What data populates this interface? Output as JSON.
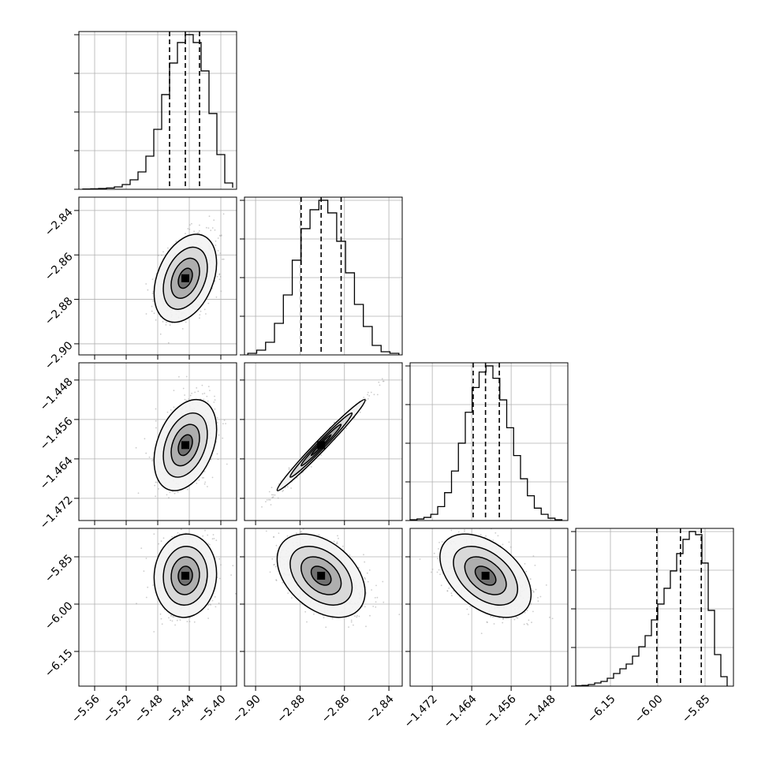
{
  "chart_data": {
    "type": "corner",
    "description_free": true,
    "grid": true,
    "params": [
      {
        "range": [
          -5.58,
          -5.38
        ],
        "ticks": [
          -5.56,
          -5.52,
          -5.48,
          -5.44,
          -5.4
        ],
        "tick_labels": [
          "−5.56",
          "−5.52",
          "−5.48",
          "−5.44",
          "−5.40"
        ],
        "mean": -5.445,
        "sd": 0.018,
        "quantiles": [
          -5.465,
          -5.445,
          -5.427
        ]
      },
      {
        "range": [
          -2.905,
          -2.834
        ],
        "ticks": [
          -2.9,
          -2.88,
          -2.86,
          -2.84
        ],
        "tick_labels": [
          "−2.90",
          "−2.88",
          "−2.86",
          "−2.84"
        ],
        "mean": -2.8705,
        "sd": 0.009,
        "quantiles": [
          -2.8795,
          -2.8705,
          -2.8615
        ]
      },
      {
        "range": [
          -1.4765,
          -1.4445
        ],
        "ticks": [
          -1.472,
          -1.464,
          -1.456,
          -1.448
        ],
        "tick_labels": [
          "−1.472",
          "−1.464",
          "−1.456",
          "−1.448"
        ],
        "mean": -1.4612,
        "sd": 0.0042,
        "quantiles": [
          -1.4637,
          -1.4612,
          -1.4584
        ]
      },
      {
        "range": [
          -6.26,
          -5.76
        ],
        "ticks": [
          -6.15,
          -6.0,
          -5.85
        ],
        "tick_labels": [
          "−6.15",
          "−6.00",
          "−5.85"
        ],
        "mean": -5.91,
        "sd": 0.06,
        "quantiles": [
          -6.003,
          -5.928,
          -5.862
        ]
      }
    ],
    "histograms": [
      {
        "param": 0,
        "edges": [
          -5.575,
          -5.565,
          -5.555,
          -5.545,
          -5.535,
          -5.525,
          -5.515,
          -5.505,
          -5.495,
          -5.485,
          -5.475,
          -5.465,
          -5.455,
          -5.445,
          -5.435,
          -5.425,
          -5.415,
          -5.405,
          -5.395,
          -5.385
        ],
        "counts": [
          0.2,
          0.3,
          0.5,
          0.8,
          1.5,
          3,
          6,
          11,
          21,
          38,
          60,
          80,
          93,
          98,
          93,
          75,
          48,
          22,
          4,
          1
        ]
      },
      {
        "param": 1,
        "edges": [
          -2.9035,
          -2.8995,
          -2.8955,
          -2.8915,
          -2.8875,
          -2.8835,
          -2.8795,
          -2.8755,
          -2.8715,
          -2.8675,
          -2.8635,
          -2.8595,
          -2.8555,
          -2.8515,
          -2.8475,
          -2.8435,
          -2.8395,
          -2.8355
        ],
        "counts": [
          1,
          3,
          8,
          20,
          38,
          60,
          80,
          92,
          98,
          90,
          72,
          52,
          32,
          18,
          6,
          2,
          1
        ]
      },
      {
        "param": 2,
        "edges": [
          -1.4765,
          -1.4751,
          -1.4737,
          -1.4723,
          -1.4709,
          -1.4695,
          -1.4681,
          -1.4667,
          -1.4653,
          -1.4639,
          -1.4625,
          -1.4611,
          -1.4597,
          -1.4583,
          -1.4569,
          -1.4555,
          -1.4541,
          -1.4527,
          -1.4513,
          -1.4499,
          -1.4485,
          -1.4471,
          -1.4457
        ],
        "counts": [
          0.5,
          1,
          2,
          4,
          9,
          18,
          32,
          50,
          70,
          86,
          96,
          100,
          92,
          78,
          60,
          42,
          27,
          16,
          8,
          4,
          1.5,
          0.5
        ]
      },
      {
        "param": 3,
        "edges": [
          -6.26,
          -6.24,
          -6.22,
          -6.2,
          -6.18,
          -6.16,
          -6.14,
          -6.12,
          -6.1,
          -6.08,
          -6.06,
          -6.04,
          -6.02,
          -6.0,
          -5.98,
          -5.96,
          -5.94,
          -5.92,
          -5.9,
          -5.88,
          -5.86,
          -5.84,
          -5.82,
          -5.8,
          -5.78
        ],
        "counts": [
          0.3,
          0.5,
          1,
          2,
          3,
          5,
          8,
          11,
          14,
          19,
          25,
          32,
          42,
          52,
          62,
          73,
          84,
          93,
          98,
          96,
          78,
          48,
          20,
          6
        ]
      }
    ],
    "pairs": [
      {
        "x": 0,
        "y": 1,
        "rho": 0.35
      },
      {
        "x": 0,
        "y": 2,
        "rho": 0.35
      },
      {
        "x": 1,
        "y": 2,
        "rho": 0.985
      },
      {
        "x": 0,
        "y": 3,
        "rho": 0.05
      },
      {
        "x": 1,
        "y": 3,
        "rho": -0.4
      },
      {
        "x": 2,
        "y": 3,
        "rho": -0.45
      }
    ]
  }
}
